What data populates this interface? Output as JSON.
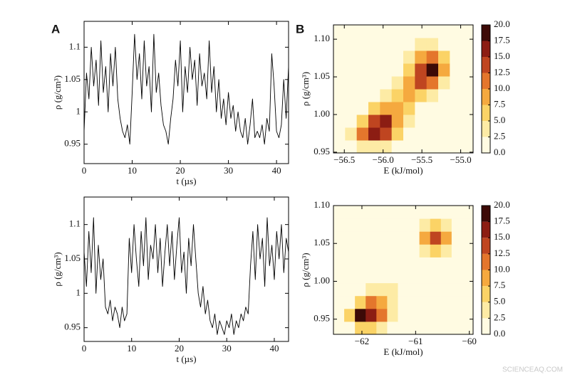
{
  "chart_data": [
    {
      "type": "line",
      "panel_label": "A",
      "xlabel": "t (µs)",
      "ylabel": "ρ (g/cm³)",
      "xlim": [
        0,
        42.5
      ],
      "ylim": [
        0.92,
        1.14
      ],
      "xticks": [
        0,
        10,
        20,
        30,
        40
      ],
      "yticks": [
        0.95,
        1,
        1.05,
        1.1
      ],
      "series": [
        {
          "color": "#000000",
          "x": [
            0,
            0.5,
            1,
            1.5,
            2,
            2.5,
            3,
            3.5,
            4,
            4.5,
            5,
            5.5,
            6,
            6.5,
            7,
            7.5,
            8,
            8.5,
            9,
            9.5,
            10,
            10.5,
            11,
            11.5,
            12,
            12.5,
            13,
            13.5,
            14,
            14.5,
            15,
            15.5,
            16,
            16.5,
            17,
            17.5,
            18,
            18.5,
            19,
            19.5,
            20,
            20.5,
            21,
            21.5,
            22,
            22.5,
            23,
            23.5,
            24,
            24.5,
            25,
            25.5,
            26,
            26.5,
            27,
            27.5,
            28,
            28.5,
            29,
            29.5,
            30,
            30.5,
            31,
            31.5,
            32,
            32.5,
            33,
            33.5,
            34,
            34.5,
            35,
            35.5,
            36,
            36.5,
            37,
            37.5,
            38,
            38.5,
            39,
            39.5,
            40,
            40.5,
            41,
            41.5,
            42,
            42.5
          ],
          "values": [
            0.97,
            1.06,
            1.02,
            1.1,
            1.04,
            1.08,
            1.01,
            1.11,
            1.03,
            1.07,
            1.0,
            1.09,
            1.04,
            1.1,
            1.02,
            0.99,
            0.97,
            0.96,
            0.98,
            0.95,
            1.03,
            1.12,
            1.05,
            1.09,
            1.02,
            1.11,
            1.04,
            1.07,
            1.0,
            1.12,
            1.03,
            1.06,
            1.01,
            0.98,
            0.97,
            0.95,
            0.99,
            1.02,
            1.08,
            1.04,
            1.11,
            1.0,
            1.07,
            1.03,
            1.1,
            1.05,
            1.08,
            1.01,
            1.09,
            1.04,
            1.06,
            1.02,
            1.11,
            1.03,
            1.07,
            1.0,
            1.05,
            0.99,
            1.02,
            0.98,
            1.03,
            0.99,
            1.01,
            0.97,
            1.0,
            0.97,
            0.96,
            0.99,
            0.95,
            0.98,
            1.02,
            0.96,
            0.97,
            0.96,
            0.98,
            0.95,
            0.99,
            0.97,
            1.09,
            1.04,
            0.97,
            0.96,
            0.98,
            1.05,
            0.99,
            1.07
          ]
        }
      ]
    },
    {
      "type": "contourf",
      "panel_label": "B",
      "xlabel": "E (kJ/mol)",
      "ylabel": "ρ (g/cm³)",
      "xlim": [
        -56.64,
        -54.84
      ],
      "ylim": [
        0.949,
        1.119
      ],
      "xticks": [
        {
          "value": -56.5,
          "label": "−56.5"
        },
        {
          "value": -56,
          "label": "−56.0"
        },
        {
          "value": -55.5,
          "label": "−55.5"
        },
        {
          "value": -55,
          "label": "−55.0"
        }
      ],
      "yticks": [
        {
          "value": 0.95,
          "label": "0.95"
        },
        {
          "value": 1,
          "label": "1.00"
        },
        {
          "value": 1.05,
          "label": "1.05"
        },
        {
          "value": 1.1,
          "label": "1.10"
        }
      ],
      "cbar_ticks": [
        {
          "value": 0,
          "label": "0.0"
        },
        {
          "value": 2.5,
          "label": "2.5"
        },
        {
          "value": 5,
          "label": "5.0"
        },
        {
          "value": 7.5,
          "label": "7.5"
        },
        {
          "value": 10,
          "label": "10.0"
        },
        {
          "value": 12.5,
          "label": "12.5"
        },
        {
          "value": 15,
          "label": "15.0"
        },
        {
          "value": 17.5,
          "label": "17.5"
        },
        {
          "value": 20,
          "label": "20.0"
        }
      ],
      "colors": [
        "#fffbe2",
        "#fdeba5",
        "#fbd366",
        "#f5a93f",
        "#e4762c",
        "#bf4520",
        "#8c1d13",
        "#3d0a07"
      ],
      "x_edges": [
        -56.64,
        -56.49,
        -56.34,
        -56.19,
        -56.04,
        -55.89,
        -55.74,
        -55.59,
        -55.44,
        -55.29,
        -55.14,
        -54.99,
        -54.84
      ],
      "y_edges": [
        0.949,
        0.966,
        0.983,
        1.0,
        1.017,
        1.034,
        1.051,
        1.068,
        1.085,
        1.102,
        1.119
      ],
      "z": [
        [
          0,
          1,
          3,
          4,
          3,
          1,
          0,
          0,
          0,
          0,
          0,
          0
        ],
        [
          0,
          3,
          10,
          15,
          14,
          6,
          1,
          0,
          0,
          0,
          0,
          0
        ],
        [
          0,
          1,
          7,
          13,
          15,
          9,
          3,
          1,
          0,
          0,
          0,
          0
        ],
        [
          0,
          0,
          2,
          5,
          8,
          9,
          6,
          2,
          1,
          0,
          0,
          0
        ],
        [
          0,
          0,
          0,
          1,
          3,
          6,
          8,
          7,
          4,
          1,
          0,
          0
        ],
        [
          0,
          0,
          0,
          0,
          1,
          4,
          9,
          13,
          11,
          4,
          1,
          0
        ],
        [
          0,
          0,
          0,
          0,
          0,
          2,
          7,
          14,
          18,
          9,
          2,
          0
        ],
        [
          0,
          0,
          0,
          0,
          0,
          1,
          3,
          9,
          11,
          6,
          1,
          0
        ],
        [
          0,
          0,
          0,
          0,
          0,
          0,
          1,
          3,
          4,
          2,
          0,
          0
        ],
        [
          0,
          0,
          0,
          0,
          0,
          0,
          0,
          0,
          1,
          0,
          0,
          0
        ]
      ]
    },
    {
      "type": "line",
      "xlabel": "t (µs)",
      "ylabel": "ρ (g/cm³)",
      "xlim": [
        0,
        43
      ],
      "ylim": [
        0.93,
        1.14
      ],
      "xticks": [
        0,
        10,
        20,
        30,
        40
      ],
      "yticks": [
        0.95,
        1,
        1.05,
        1.1
      ],
      "series": [
        {
          "color": "#000000",
          "x": [
            0,
            0.5,
            1,
            1.5,
            2,
            2.5,
            3,
            3.5,
            4,
            4.5,
            5,
            5.5,
            6,
            6.5,
            7,
            7.5,
            8,
            8.5,
            9,
            9.5,
            10,
            10.5,
            11,
            11.5,
            12,
            12.5,
            13,
            13.5,
            14,
            14.5,
            15,
            15.5,
            16,
            16.5,
            17,
            17.5,
            18,
            18.5,
            19,
            19.5,
            20,
            20.5,
            21,
            21.5,
            22,
            22.5,
            23,
            23.5,
            24,
            24.5,
            25,
            25.5,
            26,
            26.5,
            27,
            27.5,
            28,
            28.5,
            29,
            29.5,
            30,
            30.5,
            31,
            31.5,
            32,
            32.5,
            33,
            33.5,
            34,
            34.5,
            35,
            35.5,
            36,
            36.5,
            37,
            37.5,
            38,
            38.5,
            39,
            39.5,
            40,
            40.5,
            41,
            41.5,
            42,
            42.5,
            43
          ],
          "values": [
            1.06,
            1.01,
            1.09,
            1.03,
            1.11,
            1.0,
            1.07,
            1.02,
            1.05,
            0.98,
            0.97,
            0.99,
            0.96,
            0.98,
            0.97,
            0.95,
            0.98,
            0.96,
            0.97,
            1.08,
            1.03,
            1.1,
            1.05,
            1.01,
            1.09,
            1.04,
            1.11,
            1.02,
            1.07,
            1.05,
            1.1,
            1.03,
            1.08,
            1.01,
            1.06,
            1.1,
            1.04,
            1.09,
            1.02,
            1.07,
            1.11,
            1.03,
            1.06,
            1.0,
            1.08,
            1.04,
            1.1,
            1.05,
            1.0,
            0.98,
            1.01,
            0.97,
            0.99,
            0.96,
            0.95,
            0.97,
            0.94,
            0.96,
            0.95,
            0.94,
            0.96,
            0.95,
            0.97,
            0.94,
            0.96,
            0.95,
            0.97,
            0.96,
            0.98,
            0.97,
            1.04,
            1.09,
            1.02,
            1.1,
            1.05,
            1.08,
            1.01,
            1.11,
            1.04,
            1.07,
            1.02,
            1.09,
            1.05,
            1.1,
            1.03,
            1.08,
            1.06
          ]
        }
      ]
    },
    {
      "type": "contourf",
      "xlabel": "E (kJ/mol)",
      "ylabel": "ρ (g/cm³)",
      "xlim": [
        -62.53,
        -59.93
      ],
      "ylim": [
        0.93,
        1.1
      ],
      "xticks": [
        {
          "value": -62,
          "label": "−62"
        },
        {
          "value": -61,
          "label": "−61"
        },
        {
          "value": -60,
          "label": "−60"
        }
      ],
      "yticks": [
        {
          "value": 0.95,
          "label": "0.95"
        },
        {
          "value": 1,
          "label": "1.00"
        },
        {
          "value": 1.05,
          "label": "1.05"
        },
        {
          "value": 1.1,
          "label": "1.10"
        }
      ],
      "cbar_ticks": [
        {
          "value": 0,
          "label": "0.0"
        },
        {
          "value": 2.5,
          "label": "2.5"
        },
        {
          "value": 5,
          "label": "5.0"
        },
        {
          "value": 7.5,
          "label": "7.5"
        },
        {
          "value": 10,
          "label": "10.0"
        },
        {
          "value": 12.5,
          "label": "12.5"
        },
        {
          "value": 15,
          "label": "15.0"
        },
        {
          "value": 17.5,
          "label": "17.5"
        },
        {
          "value": 20,
          "label": "20.0"
        }
      ],
      "colors": [
        "#fffbe2",
        "#fdeba5",
        "#fbd366",
        "#f5a93f",
        "#e4762c",
        "#bf4520",
        "#8c1d13",
        "#3d0a07"
      ],
      "x_edges": [
        -62.53,
        -62.33,
        -62.13,
        -61.93,
        -61.73,
        -61.53,
        -61.33,
        -61.13,
        -60.93,
        -60.73,
        -60.53,
        -60.33,
        -60.13,
        -59.93
      ],
      "y_edges": [
        0.93,
        0.947,
        0.964,
        0.981,
        0.998,
        1.015,
        1.032,
        1.049,
        1.066,
        1.083,
        1.1
      ],
      "z": [
        [
          0,
          2,
          6,
          6,
          4,
          1,
          0,
          0,
          0,
          0,
          0,
          0,
          0
        ],
        [
          1,
          6,
          18,
          16,
          10,
          3,
          1,
          0,
          0,
          0,
          0,
          0,
          0
        ],
        [
          0,
          2,
          7,
          11,
          9,
          4,
          1,
          0,
          0,
          0,
          0,
          0,
          0
        ],
        [
          0,
          0,
          1,
          3,
          4,
          3,
          2,
          1,
          0,
          0,
          0,
          0,
          0
        ],
        [
          0,
          0,
          0,
          0,
          1,
          2,
          2,
          2,
          1,
          0,
          0,
          0,
          0
        ],
        [
          0,
          0,
          0,
          0,
          0,
          0,
          1,
          2,
          2,
          1,
          0,
          0,
          0
        ],
        [
          0,
          0,
          0,
          0,
          0,
          0,
          0,
          1,
          3,
          5,
          3,
          0,
          0
        ],
        [
          0,
          0,
          0,
          0,
          0,
          0,
          0,
          2,
          8,
          14,
          8,
          1,
          0
        ],
        [
          0,
          0,
          0,
          0,
          0,
          0,
          0,
          1,
          4,
          6,
          3,
          0,
          0
        ],
        [
          0,
          0,
          0,
          0,
          0,
          0,
          0,
          0,
          0,
          1,
          0,
          0,
          0
        ]
      ]
    }
  ],
  "watermark": "SCIENCEAQ.COM"
}
